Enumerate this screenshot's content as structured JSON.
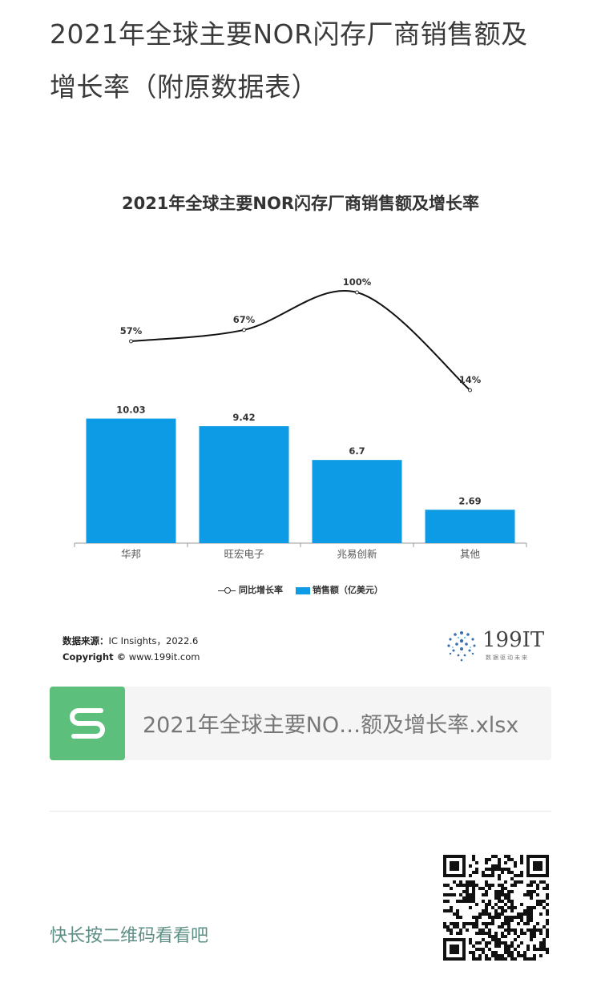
{
  "article": {
    "title": "2021年全球主要NOR闪存厂商销售额及增长率（附原数据表）"
  },
  "chart": {
    "title": "2021年全球主要NOR闪存厂商销售额及增长率",
    "legend_line": "同比增长率",
    "legend_bar": "销售额（亿美元）",
    "source_label": "数据来源：",
    "source_value": "IC Insights，2022.6",
    "copyright_label": "Copyright ©",
    "copyright_value": "www.199it.com",
    "logo_text": "199IT",
    "logo_sub": "数据驱动未来"
  },
  "chart_data": {
    "type": "bar",
    "categories": [
      "华邦",
      "旺宏电子",
      "兆易创新",
      "其他"
    ],
    "series": [
      {
        "name": "销售额（亿美元）",
        "type": "bar",
        "values": [
          10.03,
          9.42,
          6.7,
          2.69
        ],
        "labels": [
          "10.03",
          "9.42",
          "6.7",
          "2.69"
        ],
        "color": "#0d9be6"
      },
      {
        "name": "同比增长率",
        "type": "line",
        "values": [
          57,
          67,
          100,
          14
        ],
        "labels": [
          "57%",
          "67%",
          "100%",
          "14%"
        ],
        "color": "#111111"
      }
    ],
    "title": "2021年全球主要NOR闪存厂商销售额及增长率",
    "legend": "bottom",
    "grid": false
  },
  "file": {
    "icon": "spreadsheet-s-icon",
    "icon_color": "#5cbf7c",
    "name": "2021年全球主要NO…额及增长率.xlsx"
  },
  "footer": {
    "qr_hint": "快长按二维码看看吧",
    "qr_icon": "qr-code-icon"
  }
}
